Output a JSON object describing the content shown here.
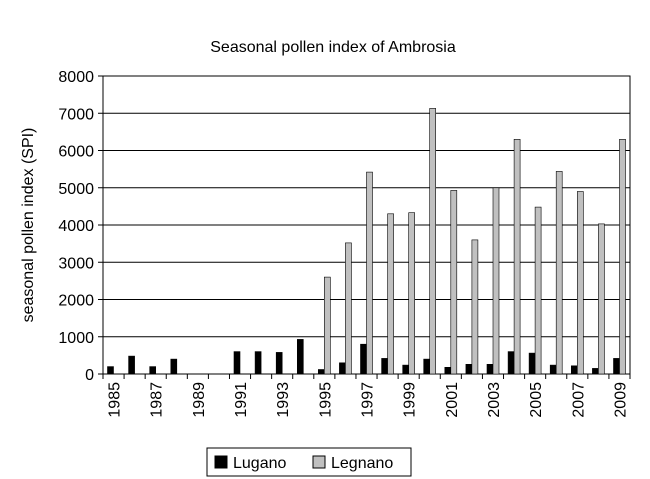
{
  "chart_data": {
    "type": "bar",
    "title": "Seasonal pollen index of Ambrosia",
    "xlabel": "",
    "ylabel": "seasonal pollen index (SPI)",
    "ylim": [
      0,
      8000
    ],
    "yticks": [
      0,
      1000,
      2000,
      3000,
      4000,
      5000,
      6000,
      7000,
      8000
    ],
    "categories": [
      1985,
      1986,
      1987,
      1988,
      1989,
      1990,
      1991,
      1992,
      1993,
      1994,
      1995,
      1996,
      1997,
      1998,
      1999,
      2000,
      2001,
      2002,
      2003,
      2004,
      2005,
      2006,
      2007,
      2008,
      2009
    ],
    "tick_labels": [
      "1985",
      "1987",
      "1989",
      "1991",
      "1993",
      "1995",
      "1997",
      "1999",
      "2001",
      "2003",
      "2005",
      "2007",
      "2009"
    ],
    "series": [
      {
        "name": "Lugano",
        "color": "#000000",
        "values": [
          200,
          480,
          200,
          400,
          null,
          null,
          600,
          600,
          580,
          930,
          120,
          300,
          800,
          420,
          240,
          400,
          180,
          260,
          260,
          600,
          560,
          240,
          220,
          150,
          420
        ]
      },
      {
        "name": "Legnano",
        "color": "#c0c0c0",
        "values": [
          null,
          null,
          null,
          null,
          null,
          null,
          null,
          null,
          null,
          null,
          2600,
          3520,
          5420,
          4300,
          4330,
          7130,
          4930,
          3600,
          5000,
          6300,
          4480,
          5440,
          4900,
          4030,
          6300
        ]
      }
    ],
    "grid": true,
    "legend_position": "bottom"
  }
}
